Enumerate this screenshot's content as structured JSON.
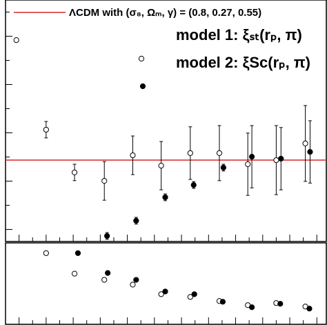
{
  "chart_data": [
    {
      "type": "scatter",
      "xlim": [
        0,
        474
      ],
      "ylim": [
        0,
        1
      ],
      "xticks": [
        20,
        40,
        60,
        80,
        100,
        120,
        140,
        160,
        180,
        200,
        220,
        240,
        260,
        280,
        300,
        320,
        340,
        360,
        380,
        400,
        420,
        440,
        460
      ],
      "yticks": [
        0.05,
        0.15,
        0.25,
        0.35,
        0.45,
        0.55,
        0.65,
        0.75,
        0.85,
        0.95
      ],
      "reference": {
        "name": "ΛCDM with (σ₈, Ωₘ, γ) = (0.8, 0.27, 0.55)",
        "value": 0.337,
        "color": "#d62728"
      },
      "series": [
        {
          "name": "model 1: ξₛₜ(rₚ, π)",
          "marker": "open",
          "color": "#000000",
          "x": [
            16,
            60,
            102,
            146,
            188,
            230,
            273,
            316,
            358,
            400,
            443
          ],
          "values": [
            0.834,
            0.463,
            0.286,
            0.251,
            0.357,
            0.314,
            0.366,
            0.366,
            0.32,
            0.337,
            0.406
          ],
          "errors": [
            0,
            0.034,
            0.034,
            0.08,
            0.08,
            0.1,
            0.109,
            0.114,
            0.129,
            0.143,
            0.157
          ]
        },
        {
          "name": "model 2: ξSc(rₚ, π)",
          "marker": "filled",
          "color": "#000000",
          "x": [
            150,
            193,
            236,
            278,
            322,
            364,
            407,
            450
          ],
          "values": [
            0.023,
            0.086,
            0.183,
            0.234,
            0.306,
            0.351,
            0.343,
            0.371
          ],
          "errors": [
            0.014,
            0.014,
            0.014,
            0.014,
            0.014,
            0.129,
            0.129,
            0.129
          ]
        }
      ]
    },
    {
      "type": "scatter",
      "xlim": [
        0,
        474
      ],
      "ylim": [
        0,
        1
      ],
      "xticks": [
        20,
        40,
        60,
        80,
        100,
        120,
        140,
        160,
        180,
        200,
        220,
        240,
        260,
        280,
        300,
        320,
        340,
        360,
        380,
        400,
        420,
        440,
        460
      ],
      "series": [
        {
          "marker": "open",
          "color": "#000000",
          "x": [
            60,
            102,
            146,
            188,
            230,
            273,
            316,
            358,
            400,
            443
          ],
          "values": [
            0.874,
            0.622,
            0.546,
            0.487,
            0.37,
            0.336,
            0.286,
            0.235,
            0.261,
            0.218
          ]
        },
        {
          "marker": "filled",
          "color": "#000000",
          "x": [
            107,
            151,
            193,
            236,
            279,
            321,
            364,
            406,
            449
          ],
          "values": [
            0.874,
            0.63,
            0.546,
            0.403,
            0.37,
            0.277,
            0.21,
            0.252,
            0.193
          ]
        }
      ]
    }
  ]
}
